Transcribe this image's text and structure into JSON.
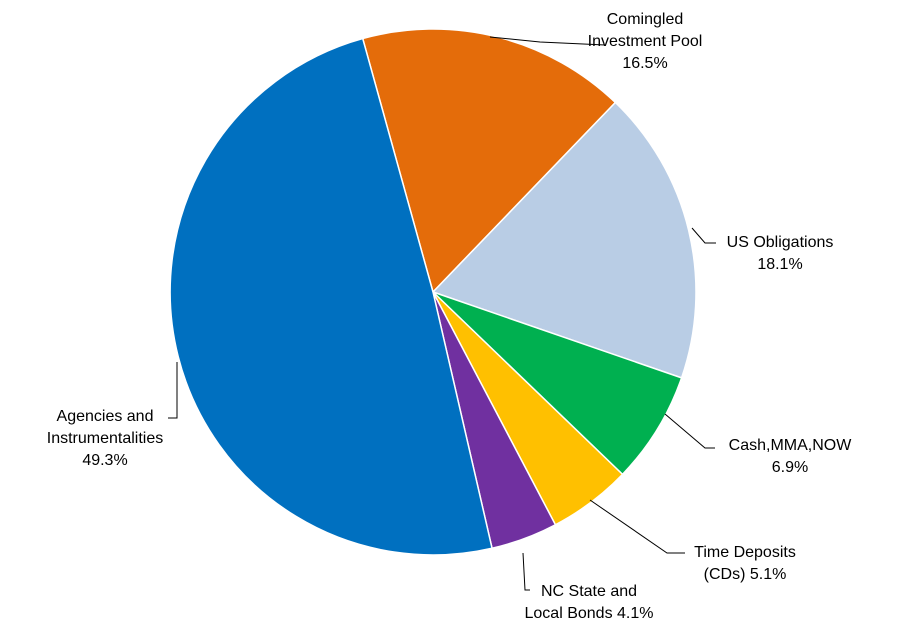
{
  "chart_data": {
    "type": "pie",
    "title": "",
    "slices": [
      {
        "label": "Comingled Investment Pool",
        "value": 16.5,
        "color": "#E46C0A",
        "label_lines": [
          "Comingled",
          "Investment Pool",
          "16.5%"
        ]
      },
      {
        "label": "US Obligations",
        "value": 18.1,
        "color": "#B9CDE5",
        "label_lines": [
          "US Obligations",
          "18.1%"
        ]
      },
      {
        "label": "Cash,MMA,NOW",
        "value": 6.9,
        "color": "#00B050",
        "label_lines": [
          "Cash,MMA,NOW",
          "6.9%"
        ]
      },
      {
        "label": "Time Deposits (CDs)",
        "value": 5.1,
        "color": "#FFC000",
        "label_lines": [
          "Time Deposits",
          "(CDs) 5.1%"
        ]
      },
      {
        "label": "NC State and Local Bonds",
        "value": 4.1,
        "color": "#7030A0",
        "label_lines": [
          "NC State and",
          "Local Bonds 4.1%"
        ]
      },
      {
        "label": "Agencies and Instrumentalities",
        "value": 49.3,
        "color": "#0070C0",
        "label_lines": [
          "Agencies and",
          "Instrumentalities",
          "49.3%"
        ]
      }
    ],
    "legend": "none",
    "label_position": "outside with leader lines"
  }
}
